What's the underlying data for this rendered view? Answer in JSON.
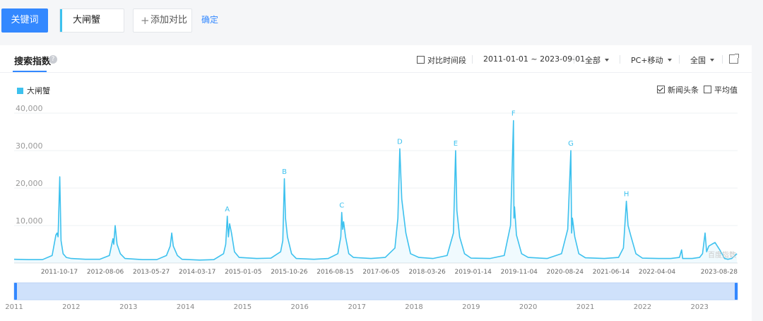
{
  "search": {
    "keyword_button": "关键词",
    "keyword_value": "大闸蟹",
    "add_compare": "添加对比",
    "confirm": "确定"
  },
  "card": {
    "title": "搜索指数",
    "compare_period": "对比时间段",
    "date_range": "2011-01-01 ~ 2023-09-01",
    "source": "全部",
    "device": "PC+移动",
    "region": "全国",
    "news_headlines": "新闻头条",
    "news_headlines_checked": true,
    "average": "平均值",
    "average_checked": false,
    "watermark": "百度指数"
  },
  "chart_data": {
    "type": "area",
    "series": [
      {
        "name": "大闸蟹",
        "color": "#3dc1ee",
        "points": [
          [
            "2011-01-01",
            1000
          ],
          [
            "2011-04-01",
            900
          ],
          [
            "2011-07-01",
            900
          ],
          [
            "2011-09-01",
            2000
          ],
          [
            "2011-09-25",
            7500
          ],
          [
            "2011-10-02",
            8000
          ],
          [
            "2011-10-09",
            7000
          ],
          [
            "2011-10-20",
            23000
          ],
          [
            "2011-10-28",
            6000
          ],
          [
            "2011-11-10",
            2500
          ],
          [
            "2011-12-01",
            1500
          ],
          [
            "2012-01-01",
            1200
          ],
          [
            "2012-04-01",
            1000
          ],
          [
            "2012-07-01",
            1000
          ],
          [
            "2012-09-01",
            2000
          ],
          [
            "2012-09-24",
            6500
          ],
          [
            "2012-09-29",
            5000
          ],
          [
            "2012-10-08",
            10000
          ],
          [
            "2012-10-20",
            5000
          ],
          [
            "2012-11-10",
            2500
          ],
          [
            "2012-12-10",
            1200
          ],
          [
            "2013-04-01",
            900
          ],
          [
            "2013-07-01",
            900
          ],
          [
            "2013-09-01",
            2000
          ],
          [
            "2013-09-25",
            4500
          ],
          [
            "2013-10-05",
            8000
          ],
          [
            "2013-10-15",
            4500
          ],
          [
            "2013-11-10",
            2000
          ],
          [
            "2013-12-10",
            1000
          ],
          [
            "2014-04-01",
            800
          ],
          [
            "2014-07-01",
            900
          ],
          [
            "2014-09-01",
            2500
          ],
          [
            "2014-09-15",
            5000
          ],
          [
            "2014-09-25",
            12500
          ],
          [
            "2014-10-02",
            7000
          ],
          [
            "2014-10-10",
            10500
          ],
          [
            "2014-10-22",
            8000
          ],
          [
            "2014-11-10",
            3000
          ],
          [
            "2014-12-10",
            1500
          ],
          [
            "2015-04-01",
            1200
          ],
          [
            "2015-07-01",
            1300
          ],
          [
            "2015-09-01",
            3000
          ],
          [
            "2015-09-15",
            6000
          ],
          [
            "2015-09-25",
            22500
          ],
          [
            "2015-10-02",
            12000
          ],
          [
            "2015-10-15",
            7000
          ],
          [
            "2015-11-10",
            2500
          ],
          [
            "2015-12-10",
            1200
          ],
          [
            "2016-04-01",
            1000
          ],
          [
            "2016-07-01",
            1200
          ],
          [
            "2016-09-01",
            2500
          ],
          [
            "2016-09-20",
            7000
          ],
          [
            "2016-09-26",
            13500
          ],
          [
            "2016-10-02",
            9000
          ],
          [
            "2016-10-08",
            11000
          ],
          [
            "2016-10-20",
            7000
          ],
          [
            "2016-11-10",
            2500
          ],
          [
            "2016-12-10",
            1500
          ],
          [
            "2017-04-01",
            1200
          ],
          [
            "2017-07-01",
            1500
          ],
          [
            "2017-09-01",
            4000
          ],
          [
            "2017-09-20",
            12000
          ],
          [
            "2017-10-02",
            30500
          ],
          [
            "2017-10-15",
            17000
          ],
          [
            "2017-11-10",
            8000
          ],
          [
            "2017-12-10",
            2500
          ],
          [
            "2018-02-01",
            1500
          ],
          [
            "2018-05-01",
            1200
          ],
          [
            "2018-08-01",
            2000
          ],
          [
            "2018-09-10",
            8000
          ],
          [
            "2018-09-24",
            30000
          ],
          [
            "2018-10-02",
            14000
          ],
          [
            "2018-10-20",
            7000
          ],
          [
            "2018-11-20",
            2500
          ],
          [
            "2019-01-01",
            1300
          ],
          [
            "2019-05-01",
            1200
          ],
          [
            "2019-08-01",
            2000
          ],
          [
            "2019-09-10",
            10000
          ],
          [
            "2019-09-29",
            38000
          ],
          [
            "2019-10-02",
            12000
          ],
          [
            "2019-10-06",
            15000
          ],
          [
            "2019-10-18",
            7500
          ],
          [
            "2019-11-20",
            2500
          ],
          [
            "2020-01-01",
            1500
          ],
          [
            "2020-05-01",
            1200
          ],
          [
            "2020-08-01",
            2500
          ],
          [
            "2020-09-10",
            9000
          ],
          [
            "2020-09-30",
            30000
          ],
          [
            "2020-10-05",
            8000
          ],
          [
            "2020-10-10",
            12000
          ],
          [
            "2020-10-25",
            7000
          ],
          [
            "2020-11-20",
            2500
          ],
          [
            "2021-01-01",
            1400
          ],
          [
            "2021-05-01",
            1200
          ],
          [
            "2021-08-01",
            1500
          ],
          [
            "2021-09-01",
            4000
          ],
          [
            "2021-09-20",
            16500
          ],
          [
            "2021-10-01",
            10000
          ],
          [
            "2021-10-20",
            7000
          ],
          [
            "2021-11-20",
            2500
          ],
          [
            "2022-01-01",
            1300
          ],
          [
            "2022-04-15",
            1200
          ],
          [
            "2022-07-01",
            1200
          ],
          [
            "2022-08-25",
            1500
          ],
          [
            "2022-09-08",
            3500
          ],
          [
            "2022-09-15",
            1200
          ],
          [
            "2022-11-15",
            1200
          ],
          [
            "2023-01-01",
            1500
          ],
          [
            "2023-01-20",
            2500
          ],
          [
            "2023-02-05",
            8000
          ],
          [
            "2023-02-15",
            3000
          ],
          [
            "2023-03-01",
            4500
          ],
          [
            "2023-03-20",
            5000
          ],
          [
            "2023-04-10",
            5500
          ],
          [
            "2023-05-10",
            3500
          ],
          [
            "2023-06-10",
            1200
          ],
          [
            "2023-07-01",
            1000
          ],
          [
            "2023-07-25",
            1200
          ],
          [
            "2023-08-28",
            2500
          ]
        ]
      }
    ],
    "annotations": [
      {
        "label": "A",
        "date": "2014-09-25",
        "value": 12500
      },
      {
        "label": "B",
        "date": "2015-09-25",
        "value": 22500
      },
      {
        "label": "C",
        "date": "2016-09-26",
        "value": 13500
      },
      {
        "label": "D",
        "date": "2017-10-02",
        "value": 30500
      },
      {
        "label": "E",
        "date": "2018-09-24",
        "value": 30000
      },
      {
        "label": "F",
        "date": "2019-09-29",
        "value": 38000
      },
      {
        "label": "G",
        "date": "2020-09-30",
        "value": 30000
      },
      {
        "label": "H",
        "date": "2021-09-20",
        "value": 16500
      }
    ],
    "xlim": [
      "2011-01-01",
      "2023-09-01"
    ],
    "ylim": [
      0,
      40000
    ],
    "y_ticks": [
      10000,
      20000,
      30000,
      40000
    ],
    "y_tick_labels": [
      "10,000",
      "20,000",
      "30,000",
      "40,000"
    ],
    "x_ticks": [
      "2011-10-17",
      "2012-08-06",
      "2013-05-27",
      "2014-03-17",
      "2015-01-05",
      "2015-10-26",
      "2016-08-15",
      "2017-06-05",
      "2018-03-26",
      "2019-01-14",
      "2019-11-04",
      "2020-08-24",
      "2021-06-14",
      "2022-04-04",
      "2023-08-28"
    ],
    "range_years": [
      "2011",
      "2012",
      "2013",
      "2014",
      "2015",
      "2016",
      "2017",
      "2018",
      "2019",
      "2020",
      "2021",
      "2022",
      "2023"
    ],
    "grid": true,
    "legend_position": "top-left"
  }
}
